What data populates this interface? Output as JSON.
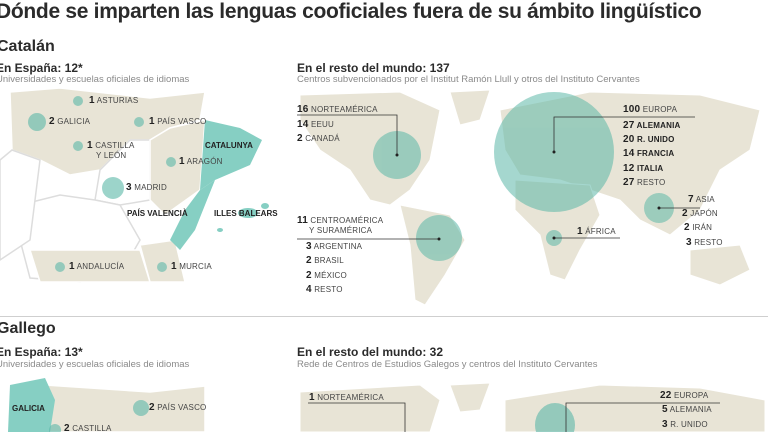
{
  "title": "Dónde se imparten las lenguas cooficiales fuera de su ámbito lingüístico",
  "colors": {
    "land": "#e8e4d6",
    "teal": "#86cfc3",
    "circle": "#5cb8a8",
    "text": "#2b2b2b"
  },
  "catalan": {
    "heading": "Catalán",
    "spain": {
      "title": "En España: 12*",
      "description": "Universidades y escuelas oficiales de idiomas",
      "regions": [
        {
          "count": "1",
          "name": "ASTURIAS"
        },
        {
          "count": "2",
          "name": "GALICIA"
        },
        {
          "count": "1",
          "name": "PAÍS VASCO"
        },
        {
          "count": "1",
          "name": "CASTILLA",
          "name2": "Y LEÓN"
        },
        {
          "count": "1",
          "name": "ARAGÓN"
        },
        {
          "count": "3",
          "name": "MADRID"
        },
        {
          "count": "1",
          "name": "ANDALUCÍA"
        },
        {
          "count": "1",
          "name": "MURCIA"
        }
      ],
      "home_regions": [
        "CATALUNYA",
        "PAÍS VALENCIÀ",
        "ILLES BALEARS"
      ]
    },
    "world": {
      "title": "En el resto del mundo: 137",
      "description": "Centros subvencionados por el Institut Ramón Llull y otros del Instituto Cervantes",
      "norteamerica": {
        "count": "16",
        "name": "NORTEAMÉRICA",
        "items": [
          {
            "count": "14",
            "name": "EEUU"
          },
          {
            "count": "2",
            "name": "CANADÁ"
          }
        ]
      },
      "europa": {
        "count": "100",
        "name": "EUROPA",
        "items": [
          {
            "count": "27",
            "name": "ALEMANIA"
          },
          {
            "count": "20",
            "name": "R. UNIDO"
          },
          {
            "count": "14",
            "name": "FRANCIA"
          },
          {
            "count": "12",
            "name": "ITALIA"
          },
          {
            "count": "27",
            "name": "RESTO"
          }
        ]
      },
      "asia": {
        "count": "7",
        "name": "ASIA",
        "items": [
          {
            "count": "2",
            "name": "JAPÓN"
          },
          {
            "count": "2",
            "name": "IRÁN"
          },
          {
            "count": "3",
            "name": "RESTO"
          }
        ]
      },
      "suramerica": {
        "count": "11",
        "name": "CENTROAMÉRICA",
        "name2": "Y SURAMÉRICA",
        "items": [
          {
            "count": "3",
            "name": "ARGENTINA"
          },
          {
            "count": "2",
            "name": "BRASIL"
          },
          {
            "count": "2",
            "name": "MÉXICO"
          },
          {
            "count": "4",
            "name": "RESTO"
          }
        ]
      },
      "africa": {
        "count": "1",
        "name": "ÁFRICA"
      }
    }
  },
  "gallego": {
    "heading": "Gallego",
    "spain": {
      "title": "En España: 13*",
      "description": "Universidades y escuelas oficiales de idiomas",
      "home_region": "GALICIA",
      "regions": [
        {
          "count": "2",
          "name": "PAÍS VASCO"
        },
        {
          "count": "2",
          "name": "CASTILLA"
        }
      ]
    },
    "world": {
      "title": "En el resto del mundo: 32",
      "description": "Rede de Centros de Estudios Galegos y centros del Instituto Cervantes",
      "norteamerica": {
        "count": "1",
        "name": "NORTEAMÉRICA"
      },
      "europa": {
        "count": "22",
        "name": "EUROPA",
        "items": [
          {
            "count": "5",
            "name": "ALEMANIA"
          },
          {
            "count": "3",
            "name": "R. UNIDO"
          }
        ]
      }
    }
  }
}
